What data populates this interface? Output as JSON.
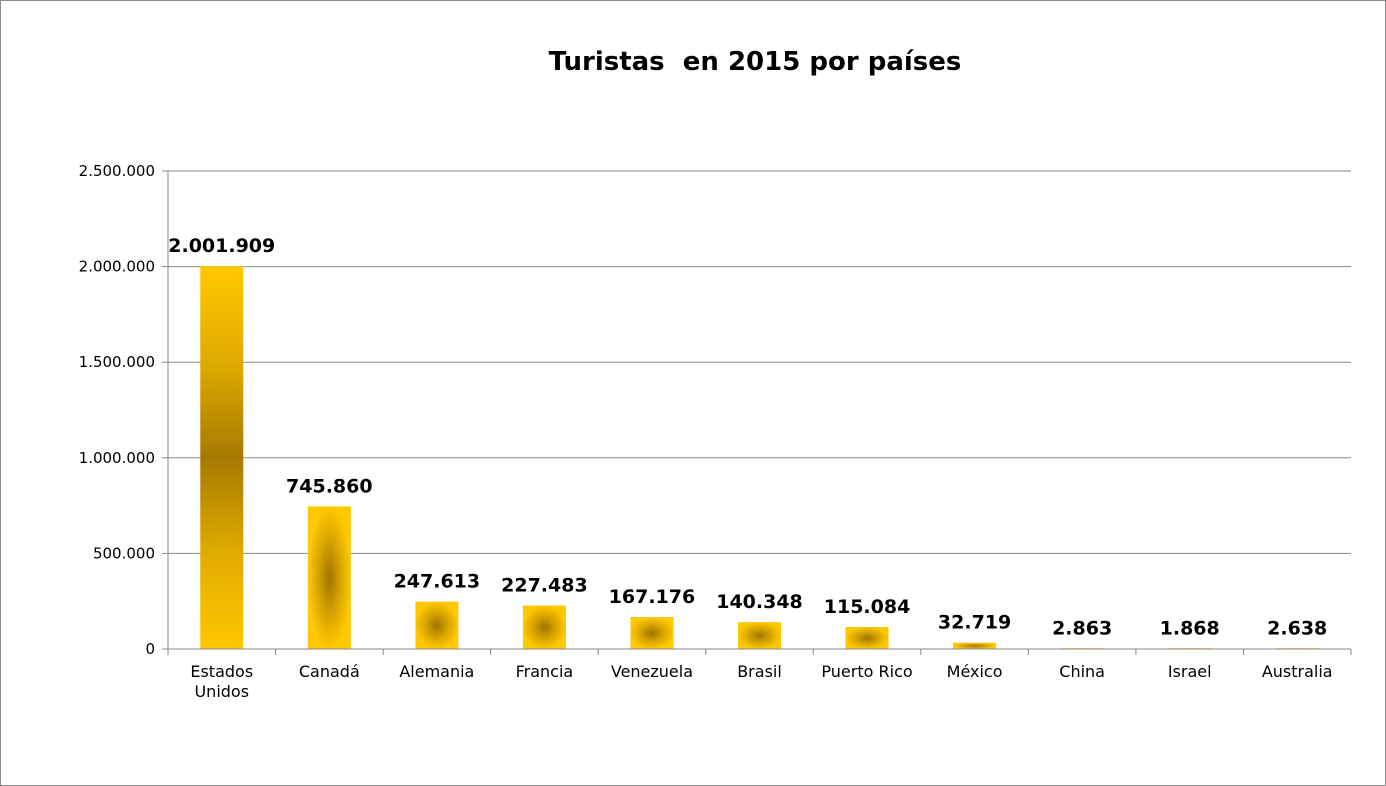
{
  "chart_data": {
    "type": "bar",
    "title": "Turistas  en 2015 por países",
    "xlabel": "",
    "ylabel": "",
    "ylim": [
      0,
      2500000
    ],
    "yticks": [
      "0",
      "500.000",
      "1.000.000",
      "1.500.000",
      "2.000.000",
      "2.500.000"
    ],
    "ytick_values": [
      0,
      500000,
      1000000,
      1500000,
      2000000,
      2500000
    ],
    "grid": true,
    "legend": "none",
    "categories": [
      "Estados Unidos",
      "Canadá",
      "Alemania",
      "Francia",
      "Venezuela",
      "Brasil",
      "Puerto Rico",
      "México",
      "China",
      "Israel",
      "Australia"
    ],
    "category_lines": [
      [
        "Estados",
        "Unidos"
      ],
      [
        "Canadá"
      ],
      [
        "Alemania"
      ],
      [
        "Francia"
      ],
      [
        "Venezuela"
      ],
      [
        "Brasil"
      ],
      [
        "Puerto Rico"
      ],
      [
        "México"
      ],
      [
        "China"
      ],
      [
        "Israel"
      ],
      [
        "Australia"
      ]
    ],
    "values": [
      2001909,
      745860,
      247613,
      227483,
      167176,
      140348,
      115084,
      32719,
      2863,
      1868,
      2638
    ],
    "data_labels": [
      "2.001.909",
      "745.860",
      "247.613",
      "227.483",
      "167.176",
      "140.348",
      "115.084",
      "32.719",
      "2.863",
      "1.868",
      "2.638"
    ],
    "colors": {
      "bar_light": "#ffc800",
      "bar_dark": "#a87c00",
      "grid": "#888888",
      "axis": "#888888"
    }
  }
}
